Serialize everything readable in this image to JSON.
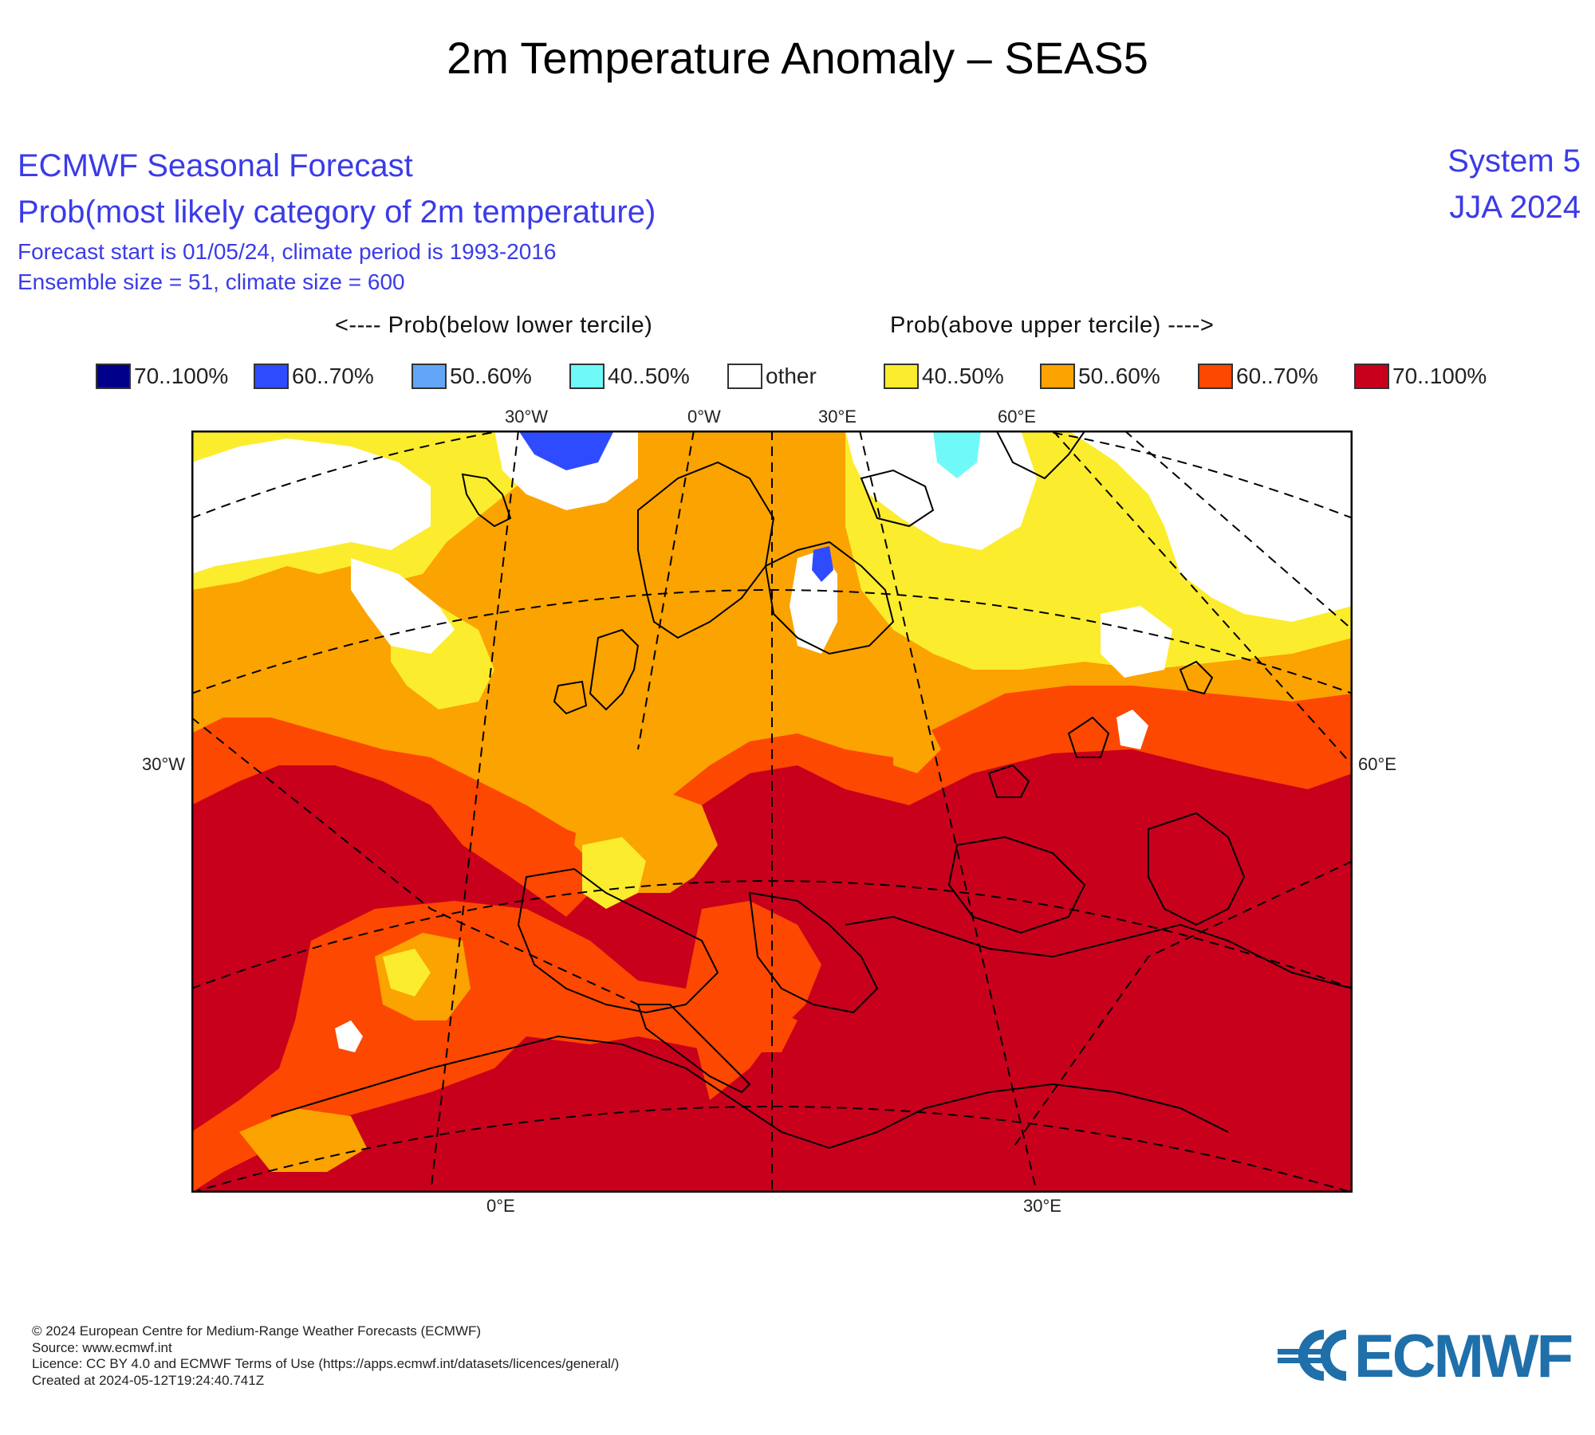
{
  "page_title": "2m Temperature Anomaly – SEAS5",
  "header": {
    "line1": "ECMWF Seasonal Forecast",
    "line2": "Prob(most likely category of 2m temperature)",
    "line3": "Forecast start is 01/05/24, climate period is 1993-2016",
    "line4": "Ensemble size = 51, climate size = 600",
    "system": "System 5",
    "period": "JJA 2024"
  },
  "hints": {
    "below": "<---- Prob(below lower tercile)",
    "above": "Prob(above upper tercile) ---->"
  },
  "legend": [
    {
      "label": "70..100%",
      "color": "#00008b"
    },
    {
      "label": "60..70%",
      "color": "#2f4bff"
    },
    {
      "label": "50..60%",
      "color": "#63a6f7"
    },
    {
      "label": "40..50%",
      "color": "#6ffaf8"
    },
    {
      "label": "other",
      "color": "#ffffff"
    },
    {
      "label": "40..50%",
      "color": "#fcec2e"
    },
    {
      "label": "50..60%",
      "color": "#fba300"
    },
    {
      "label": "60..70%",
      "color": "#fc4800"
    },
    {
      "label": "70..100%",
      "color": "#c8001c"
    }
  ],
  "axis_labels": {
    "top": [
      "30°W",
      "0°W",
      "30°E",
      "60°E"
    ],
    "left": "30°W",
    "right": "60°E",
    "bottom": [
      "0°E",
      "30°E"
    ]
  },
  "footer": {
    "copyright": "© 2024 European Centre for Medium-Range Weather Forecasts (ECMWF)",
    "source": "Source: www.ecmwf.int",
    "licence": "Licence: CC BY 4.0 and ECMWF Terms of Use (https://apps.ecmwf.int/datasets/licences/general/)",
    "created": "Created at 2024-05-12T19:24:40.741Z"
  },
  "logo_text": "ECMWF",
  "colors": {
    "brand_blue": "#1f6faa",
    "header_blue": "#3b3be8"
  }
}
